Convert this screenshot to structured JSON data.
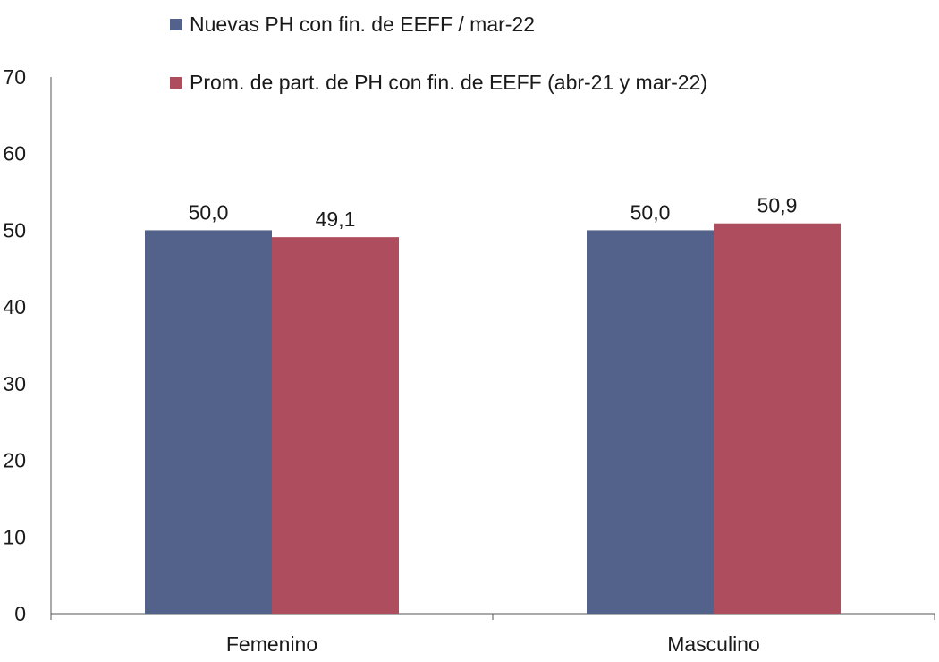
{
  "chart_data": {
    "type": "bar",
    "title": "",
    "xlabel": "",
    "ylabel": "",
    "categories": [
      "Femenino",
      "Masculino"
    ],
    "series": [
      {
        "name": "Nuevas PH con fin. de EEFF / mar-22",
        "color": "#52628a",
        "values": [
          50.0,
          50.0
        ],
        "labels": [
          "50,0",
          "50,0"
        ]
      },
      {
        "name": "Prom. de part. de PH con fin. de EEFF (abr-21 y mar-22)",
        "color": "#ae4d5e",
        "values": [
          49.1,
          50.9
        ],
        "labels": [
          "49,1",
          "50,9"
        ]
      }
    ],
    "ylim": [
      0,
      70
    ],
    "yticks": [
      0,
      10,
      20,
      30,
      40,
      50,
      60,
      70
    ],
    "ytick_labels": [
      "0",
      "10",
      "20",
      "30",
      "40",
      "50",
      "60",
      "70"
    ],
    "grid": false,
    "legend_position": "top-center"
  }
}
